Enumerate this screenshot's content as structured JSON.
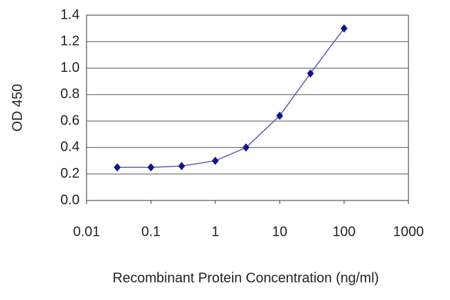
{
  "chart_data": {
    "type": "scatter",
    "x_label": "Recombinant Protein Concentration (ng/ml)",
    "y_label": "OD 450",
    "x": [
      0.03,
      0.1,
      0.3,
      1,
      3,
      10,
      30,
      100
    ],
    "values": [
      0.25,
      0.25,
      0.26,
      0.3,
      0.4,
      0.64,
      0.96,
      1.3
    ],
    "color": "#14148a",
    "line_color": "#5a5ab8",
    "xlog": true,
    "xlim": [
      0.01,
      1000
    ],
    "xticks": [
      0.01,
      0.1,
      1,
      10,
      100,
      1000
    ],
    "ylim": [
      0,
      1.4
    ],
    "yticks": [
      {
        "value": 0,
        "label": "0.0"
      },
      0.2,
      0.4,
      0.6,
      0.8,
      {
        "value": 1,
        "label": "1.0"
      },
      1.2,
      1.4
    ],
    "grid": true
  }
}
